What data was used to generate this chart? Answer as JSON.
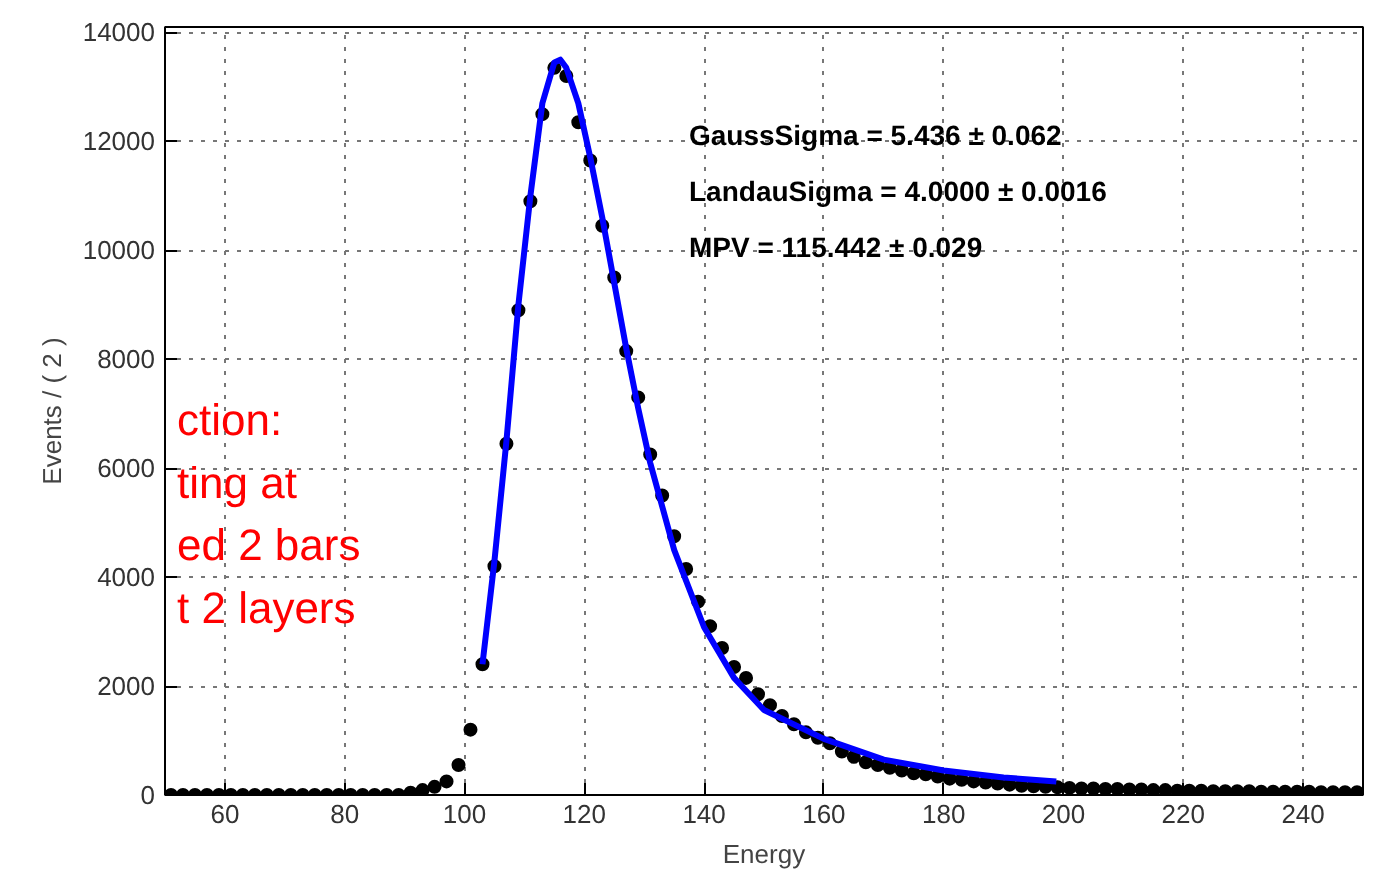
{
  "chart_data": {
    "type": "scatter",
    "xlabel": "Energy",
    "ylabel": "Events / ( 2 )",
    "xlim": [
      50,
      250
    ],
    "ylim": [
      0,
      14100
    ],
    "xticks": [
      60,
      80,
      100,
      120,
      140,
      160,
      180,
      200,
      220,
      240
    ],
    "yticks": [
      0,
      2000,
      4000,
      6000,
      8000,
      10000,
      12000,
      14000
    ],
    "grid": true,
    "annotations": [
      "GaussSigma =  5.436 ± 0.062",
      "LandauSigma =  4.0000 ± 0.0016",
      "MPV =  115.442 ± 0.029",
      "ction:\nting at\ned 2 bars\nt 2 layers"
    ],
    "series": [
      {
        "marker": "circle",
        "color": "#000000",
        "x": [
          51,
          53,
          55,
          57,
          59,
          61,
          63,
          65,
          67,
          69,
          71,
          73,
          75,
          77,
          79,
          81,
          83,
          85,
          87,
          89,
          91,
          93,
          95,
          97,
          99,
          101,
          103,
          105,
          107,
          109,
          111,
          113,
          115,
          117,
          119,
          121,
          123,
          125,
          127,
          129,
          131,
          133,
          135,
          137,
          139,
          141,
          143,
          145,
          147,
          149,
          151,
          153,
          155,
          157,
          159,
          161,
          163,
          165,
          167,
          169,
          171,
          173,
          175,
          177,
          179,
          181,
          183,
          185,
          187,
          189,
          191,
          193,
          195,
          197,
          199,
          201,
          203,
          205,
          207,
          209,
          211,
          213,
          215,
          217,
          219,
          221,
          223,
          225,
          227,
          229,
          231,
          233,
          235,
          237,
          239,
          241,
          243,
          245,
          247,
          249
        ],
        "values": [
          0,
          0,
          0,
          0,
          0,
          0,
          0,
          0,
          0,
          0,
          0,
          0,
          0,
          0,
          0,
          0,
          0,
          0,
          0,
          0,
          40,
          90,
          150,
          250,
          550,
          1200,
          2400,
          4200,
          6450,
          8900,
          10900,
          12500,
          13350,
          13200,
          12350,
          11650,
          10450,
          9500,
          8150,
          7300,
          6250,
          5500,
          4750,
          4150,
          3550,
          3100,
          2700,
          2350,
          2150,
          1850,
          1650,
          1450,
          1300,
          1150,
          1050,
          950,
          800,
          700,
          600,
          550,
          500,
          450,
          400,
          380,
          340,
          300,
          280,
          250,
          230,
          210,
          190,
          170,
          160,
          150,
          140,
          130,
          120,
          120,
          110,
          110,
          100,
          100,
          90,
          90,
          80,
          80,
          80,
          70,
          70,
          70,
          70,
          60,
          60,
          60,
          60,
          60,
          50,
          50,
          50,
          50
        ]
      },
      {
        "type": "line",
        "marker": "none",
        "color": "#0000ff",
        "x": [
          103,
          105,
          107,
          109,
          111,
          113,
          115,
          116,
          117,
          119,
          121,
          123,
          125,
          127,
          129,
          131,
          135,
          140,
          145,
          150,
          160,
          170,
          180,
          190,
          198.8
        ],
        "values": [
          2400,
          4300,
          6500,
          9000,
          11000,
          12700,
          13450,
          13500,
          13350,
          12700,
          11700,
          10600,
          9400,
          8200,
          7100,
          6100,
          4500,
          3080,
          2150,
          1560,
          1030,
          650,
          450,
          320,
          250
        ]
      }
    ]
  }
}
